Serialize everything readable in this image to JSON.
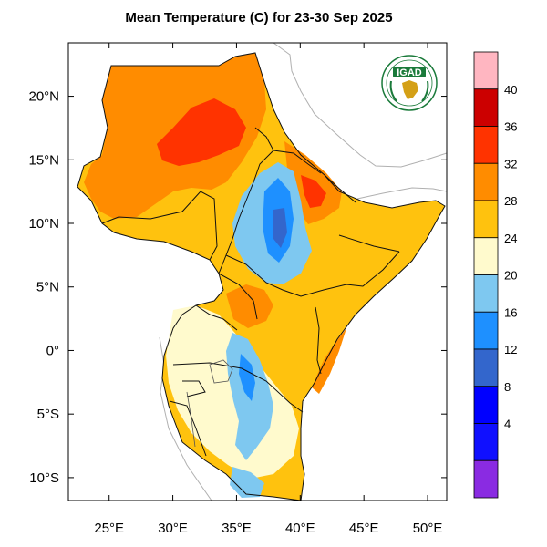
{
  "title": "Mean Temperature (C) for 23-30 Sep 2025",
  "logo": {
    "text": "IGAD",
    "icon": "igad-logo-icon",
    "accent": "#1a7a3a"
  },
  "axes": {
    "lon_ticks": [
      "25°E",
      "30°E",
      "35°E",
      "40°E",
      "45°E",
      "50°E"
    ],
    "lat_ticks": [
      "20°N",
      "15°N",
      "10°N",
      "5°N",
      "0°",
      "5°S",
      "10°S"
    ],
    "lon_values": [
      25,
      30,
      35,
      40,
      45,
      50
    ],
    "lat_values": [
      20,
      15,
      10,
      5,
      0,
      -5,
      -10
    ],
    "lon_range": [
      21.8,
      51.5
    ],
    "lat_range": [
      -11.8,
      24.2
    ]
  },
  "colorbar": {
    "labels": [
      "40",
      "36",
      "32",
      "28",
      "24",
      "20",
      "16",
      "12",
      "8",
      "4"
    ],
    "colors": [
      "#ffb6c1",
      "#cc0000",
      "#ff3300",
      "#ff8c00",
      "#ffc20e",
      "#fffacd",
      "#7ec8f0",
      "#1e90ff",
      "#3366cc",
      "#0000ff",
      "#1010ff",
      "#8a2be2"
    ]
  }
}
